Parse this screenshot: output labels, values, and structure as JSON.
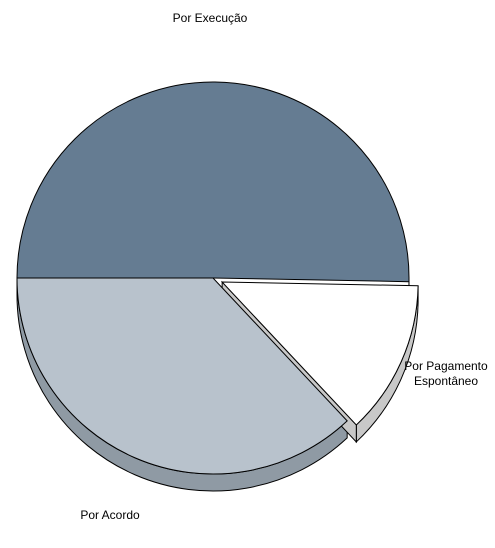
{
  "chart_data": {
    "type": "pie",
    "title": "",
    "slices": [
      {
        "label": "Por Execução",
        "value": 50.3,
        "color": "#657c92",
        "side": "#4e6074"
      },
      {
        "label": "Por Pagamento\nEspontâneo",
        "value": 12.7,
        "color": "#ffffff",
        "side": "#c8c8c8",
        "exploded": true
      },
      {
        "label": "Por Acordo",
        "value": 37.0,
        "color": "#b8c2cc",
        "side": "#8f9aa4"
      }
    ],
    "three_d": true,
    "legend": "none"
  }
}
